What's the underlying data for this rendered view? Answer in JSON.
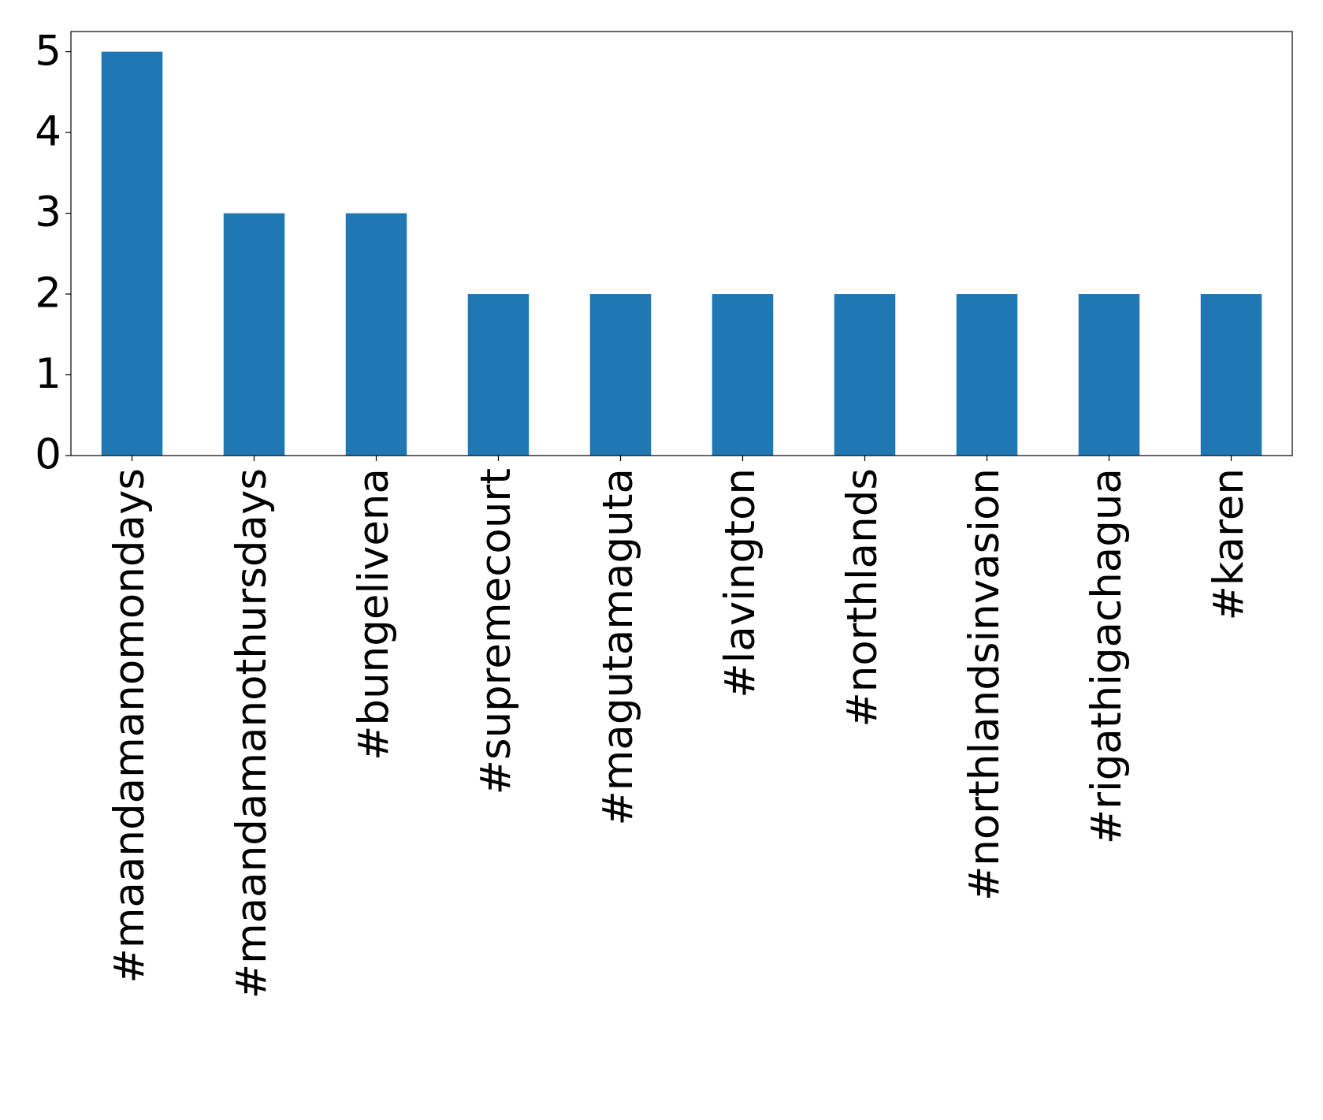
{
  "chart_data": {
    "type": "bar",
    "categories": [
      "#maandamanomondays",
      "#maandamanothursdays",
      "#bungelivena",
      "#supremecourt",
      "#magutamaguta",
      "#lavington",
      "#northlands",
      "#northlandsinvasion",
      "#rigathigachagua",
      "#karen"
    ],
    "values": [
      5,
      3,
      3,
      2,
      2,
      2,
      2,
      2,
      2,
      2
    ],
    "color": "#1f77b4",
    "ylim": [
      0,
      5.25
    ],
    "yticks": [
      0,
      1,
      2,
      3,
      4,
      5
    ],
    "grid": false
  }
}
